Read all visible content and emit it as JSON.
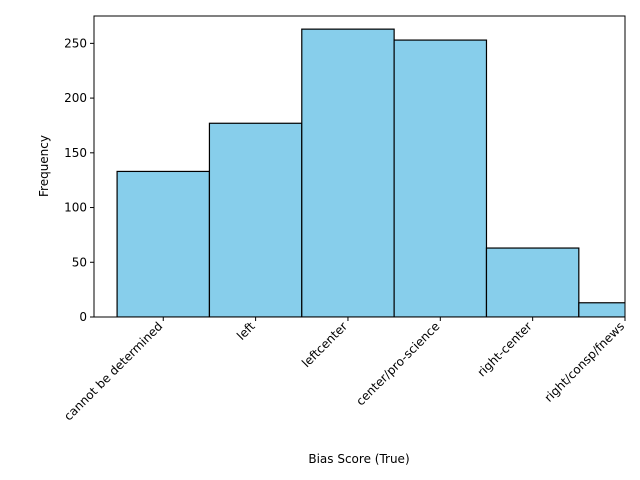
{
  "chart_data": {
    "type": "bar",
    "title": "",
    "xlabel": "Bias Score (True)",
    "ylabel": "Frequency",
    "x_ticks": [
      0,
      1,
      2,
      3,
      4,
      5
    ],
    "x_tick_labels": [
      "cannot be determined",
      "left",
      "leftcenter",
      "center/pro-science",
      "right-center",
      "right/consp/fnews"
    ],
    "xlim": [
      -0.75,
      5
    ],
    "bins": [
      {
        "x0": -0.5,
        "x1": 0.5,
        "value": 133
      },
      {
        "x0": 0.5,
        "x1": 1.5,
        "value": 177
      },
      {
        "x0": 1.5,
        "x1": 2.5,
        "value": 263
      },
      {
        "x0": 2.5,
        "x1": 3.5,
        "value": 253
      },
      {
        "x0": 3.5,
        "x1": 4.5,
        "value": 63
      },
      {
        "x0": 4.5,
        "x1": 5.5,
        "value": 13
      }
    ],
    "ylim": [
      0,
      275
    ],
    "y_ticks": [
      0,
      50,
      100,
      150,
      200,
      250
    ],
    "bar_color": "#87ceeb",
    "edge_color": "#000000",
    "grid": false,
    "legend": false
  }
}
